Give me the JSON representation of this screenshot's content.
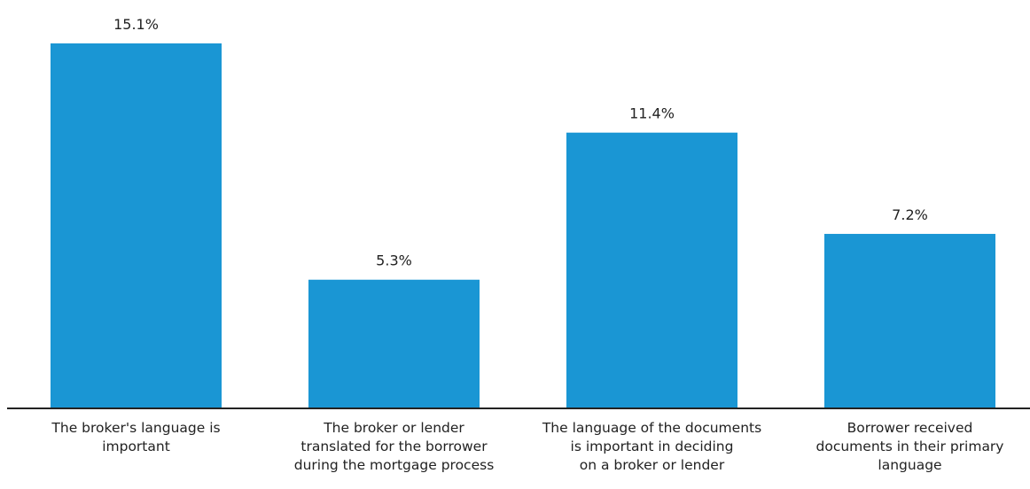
{
  "chart_data": {
    "type": "bar",
    "categories": [
      "The broker's language is\nimportant",
      "The broker or lender\ntranslated for the borrower\nduring the mortgage process",
      "The language of the documents\nis important in deciding\non a broker or lender",
      "Borrower received\ndocuments in their primary\nlanguage"
    ],
    "values": [
      15.1,
      5.3,
      11.4,
      7.2
    ],
    "value_labels": [
      "15.1%",
      "5.3%",
      "11.4%",
      "7.2%"
    ],
    "color": "#1a96d4"
  }
}
